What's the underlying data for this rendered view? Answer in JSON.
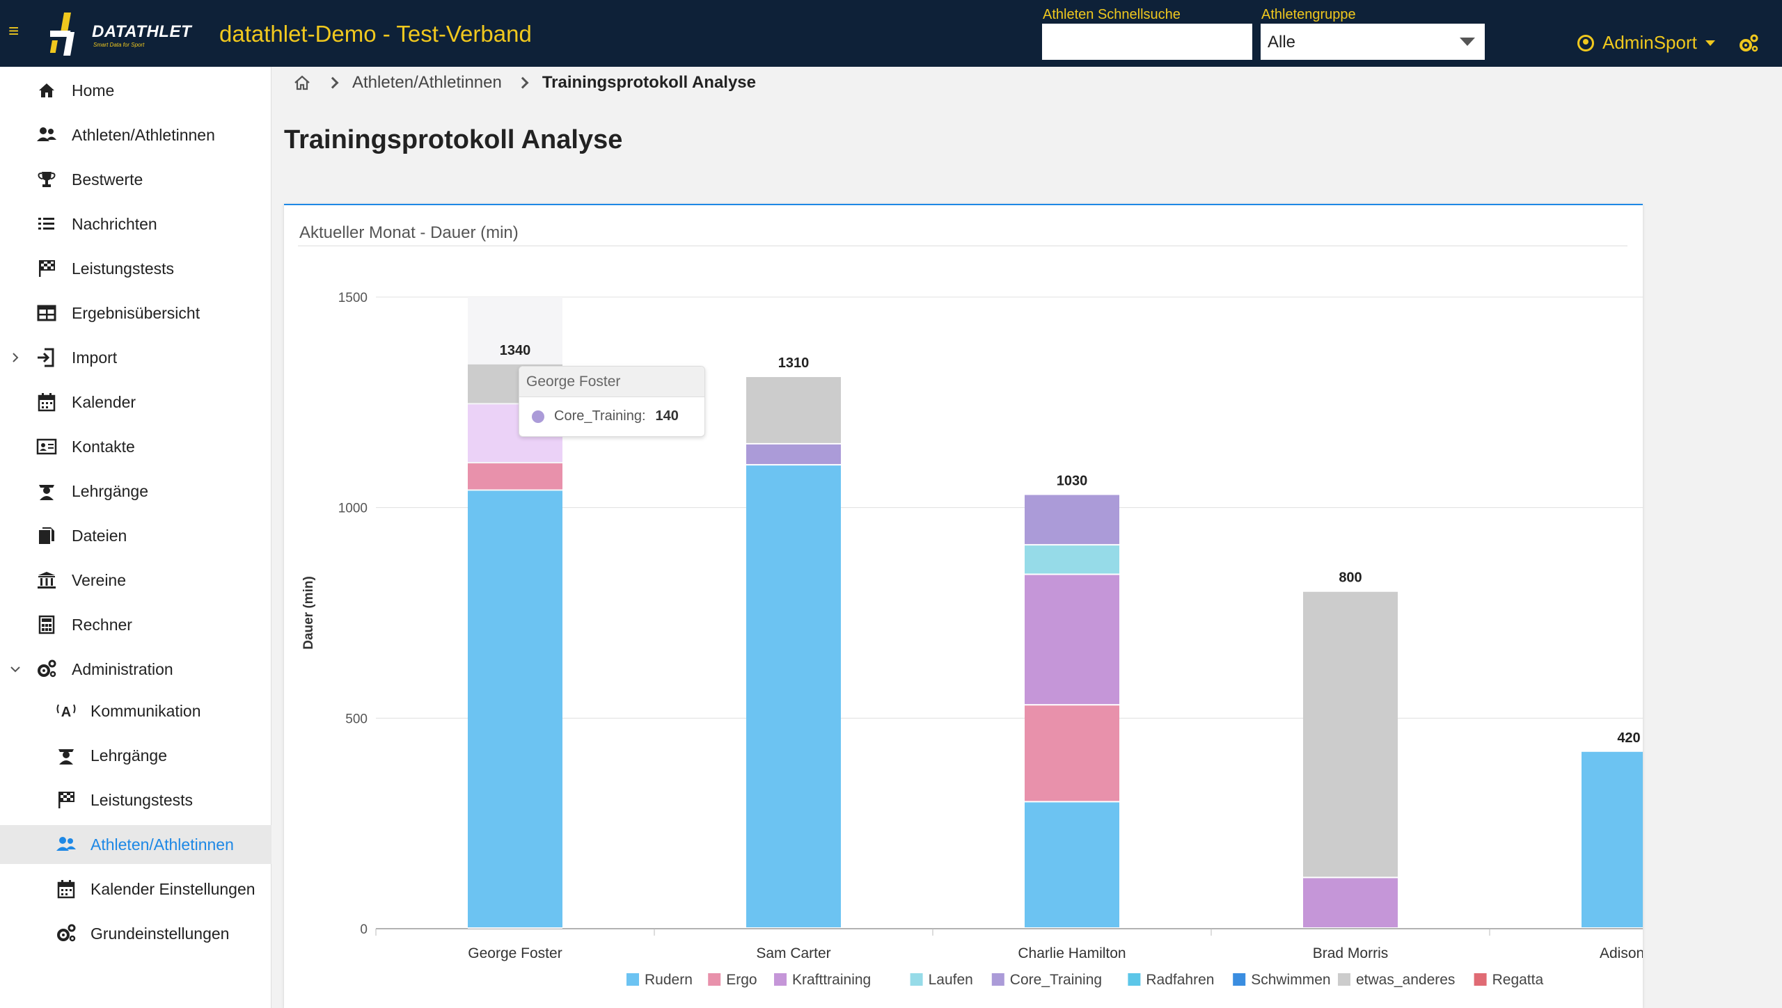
{
  "header": {
    "app_title": "datathlet-Demo - Test-Verband",
    "logo_text": "DATATHLET",
    "logo_subtext": "Smart Data for Sport",
    "quick_search_label": "Athleten Schnellsuche",
    "quick_search_value": "",
    "group_label": "Athletengruppe",
    "group_value": "Alle",
    "user_name": "AdminSport",
    "accent_color": "#f0c81e",
    "bar_color": "#0e2138"
  },
  "sidebar": {
    "items": [
      {
        "label": "Home",
        "icon": "home-icon"
      },
      {
        "label": "Athleten/Athletinnen",
        "icon": "users-icon"
      },
      {
        "label": "Bestwerte",
        "icon": "trophy-icon"
      },
      {
        "label": "Nachrichten",
        "icon": "list-icon"
      },
      {
        "label": "Leistungstests",
        "icon": "flag-icon"
      },
      {
        "label": "Ergebnisübersicht",
        "icon": "table-icon"
      },
      {
        "label": "Import",
        "icon": "import-icon"
      },
      {
        "label": "Kalender",
        "icon": "calendar-icon"
      },
      {
        "label": "Kontakte",
        "icon": "contact-card-icon"
      },
      {
        "label": "Lehrgänge",
        "icon": "graduation-icon"
      },
      {
        "label": "Dateien",
        "icon": "files-icon"
      },
      {
        "label": "Vereine",
        "icon": "institution-icon"
      },
      {
        "label": "Rechner",
        "icon": "calculator-icon"
      },
      {
        "label": "Administration",
        "icon": "gears-icon"
      }
    ],
    "sub_items": [
      {
        "label": "Kommunikation",
        "icon": "broadcast-icon"
      },
      {
        "label": "Lehrgänge",
        "icon": "graduation-icon"
      },
      {
        "label": "Leistungstests",
        "icon": "flag-icon"
      },
      {
        "label": "Athleten/Athletinnen",
        "icon": "users-icon"
      },
      {
        "label": "Kalender Einstellungen",
        "icon": "calendar-icon"
      },
      {
        "label": "Grundeinstellungen",
        "icon": "gears-icon"
      }
    ],
    "active_color": "#1e88e5"
  },
  "breadcrumb": {
    "items": [
      "Athleten/Athletinnen",
      "Trainingsprotokoll Analyse"
    ]
  },
  "page": {
    "title": "Trainingsprotokoll Analyse",
    "card_title": "Aktueller Monat - Dauer (min)"
  },
  "tooltip": {
    "title": "George Foster",
    "series": "Core_Training:",
    "value": "140"
  },
  "chart_data": {
    "type": "bar",
    "stacked": true,
    "title": "Aktueller Monat - Dauer (min)",
    "xlabel": "",
    "ylabel": "Dauer (min)",
    "ylim": [
      0,
      1500
    ],
    "yticks": [
      0,
      500,
      1000,
      1500
    ],
    "categories": [
      "George Foster",
      "Sam Carter",
      "Charlie Hamilton",
      "Brad Morris",
      "Adison S"
    ],
    "totals": [
      1340,
      1310,
      1030,
      800,
      420
    ],
    "series": [
      {
        "name": "Rudern",
        "color": "#6cc3f2",
        "values": [
          1040,
          1100,
          300,
          0,
          420
        ]
      },
      {
        "name": "Ergo",
        "color": "#e891ab",
        "values": [
          65,
          0,
          230,
          0,
          0
        ]
      },
      {
        "name": "Krafttraining",
        "color": "#c596d8",
        "values": [
          0,
          0,
          310,
          120,
          0
        ]
      },
      {
        "name": "Laufen",
        "color": "#96dbe8",
        "values": [
          0,
          0,
          70,
          0,
          0
        ]
      },
      {
        "name": "Core_Training",
        "color": "#ab9bd8",
        "values": [
          140,
          50,
          120,
          0,
          0
        ]
      },
      {
        "name": "Radfahren",
        "color": "#5cc6e8",
        "values": [
          0,
          0,
          0,
          0,
          0
        ]
      },
      {
        "name": "Schwimmen",
        "color": "#3a8de0",
        "values": [
          0,
          0,
          0,
          0,
          0
        ]
      },
      {
        "name": "etwas_anderes",
        "color": "#cccccc",
        "values": [
          95,
          160,
          0,
          680,
          0
        ]
      },
      {
        "name": "Regatta",
        "color": "#e06b74",
        "values": [
          0,
          0,
          0,
          0,
          0
        ]
      }
    ],
    "highlight": {
      "category": "George Foster",
      "series": "Core_Training"
    },
    "highlight_color": "#ebd2f7",
    "legend_position": "bottom"
  }
}
